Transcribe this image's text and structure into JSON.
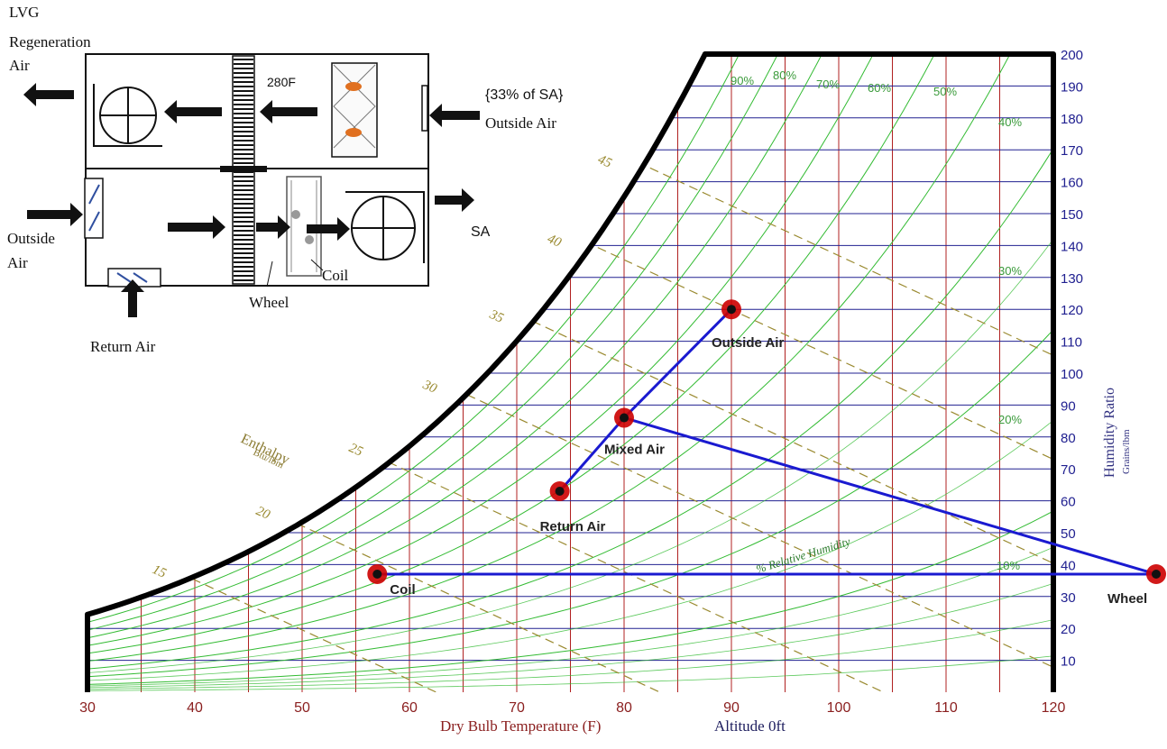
{
  "chart_data": {
    "type": "psychrometric",
    "xlabel": "Dry Bulb Temperature  (F)",
    "ylabel": "Humidity Ratio",
    "ylabel_units": "Grains/lbm",
    "altitude": "Altitude 0ft",
    "xlim": [
      30,
      120
    ],
    "ylim": [
      0,
      200
    ],
    "x_ticks": [
      30,
      40,
      50,
      60,
      70,
      80,
      90,
      100,
      110,
      120
    ],
    "y_ticks": [
      10,
      20,
      30,
      40,
      50,
      60,
      70,
      80,
      90,
      100,
      110,
      120,
      130,
      140,
      150,
      160,
      170,
      180,
      190,
      200
    ],
    "grid": true,
    "enthalpy_label": "Enthalpy",
    "enthalpy_units": "Btu/lbm",
    "enthalpy_lines": [
      15,
      20,
      25,
      30,
      35,
      40,
      45
    ],
    "rh_label": "% Relative Humidity",
    "rh_lines": [
      "10%",
      "20%",
      "30%",
      "40%",
      "50%",
      "60%",
      "70%",
      "80%",
      "90%"
    ],
    "points": [
      {
        "label": "Outside Air",
        "x": 90,
        "y": 120
      },
      {
        "label": "Mixed Air",
        "x": 80,
        "y": 86
      },
      {
        "label": "Return Air",
        "x": 74,
        "y": 63
      },
      {
        "label": "Coil",
        "x": 57,
        "y": 37
      },
      {
        "label": "Wheel",
        "x": 130,
        "y": 37
      }
    ],
    "process_lines": [
      [
        "Return Air",
        "Mixed Air"
      ],
      [
        "Mixed Air",
        "Outside Air"
      ],
      [
        "Mixed Air",
        "Wheel"
      ],
      [
        "Coil",
        "Wheel"
      ]
    ],
    "colors": {
      "process": "#1a1ad0",
      "point": "#cc0000",
      "grid_v": "#b02020",
      "grid_h": "#202090",
      "rh": "#33bb33",
      "enthalpy": "#9a8a30",
      "axis_x_text": "#8b2020",
      "axis_y_text": "#202090"
    }
  },
  "schematic": {
    "lvg_label": [
      "LVG",
      "Regeneration",
      "Air"
    ],
    "temp_label": "280F",
    "sa_pct_label": "{33% of SA}",
    "outside_air_top": "Outside Air",
    "sa_label": "SA",
    "outside_air_left": [
      "Outside",
      "Air"
    ],
    "coil_label": "Coil",
    "wheel_label": "Wheel",
    "return_air_label": "Return Air"
  }
}
